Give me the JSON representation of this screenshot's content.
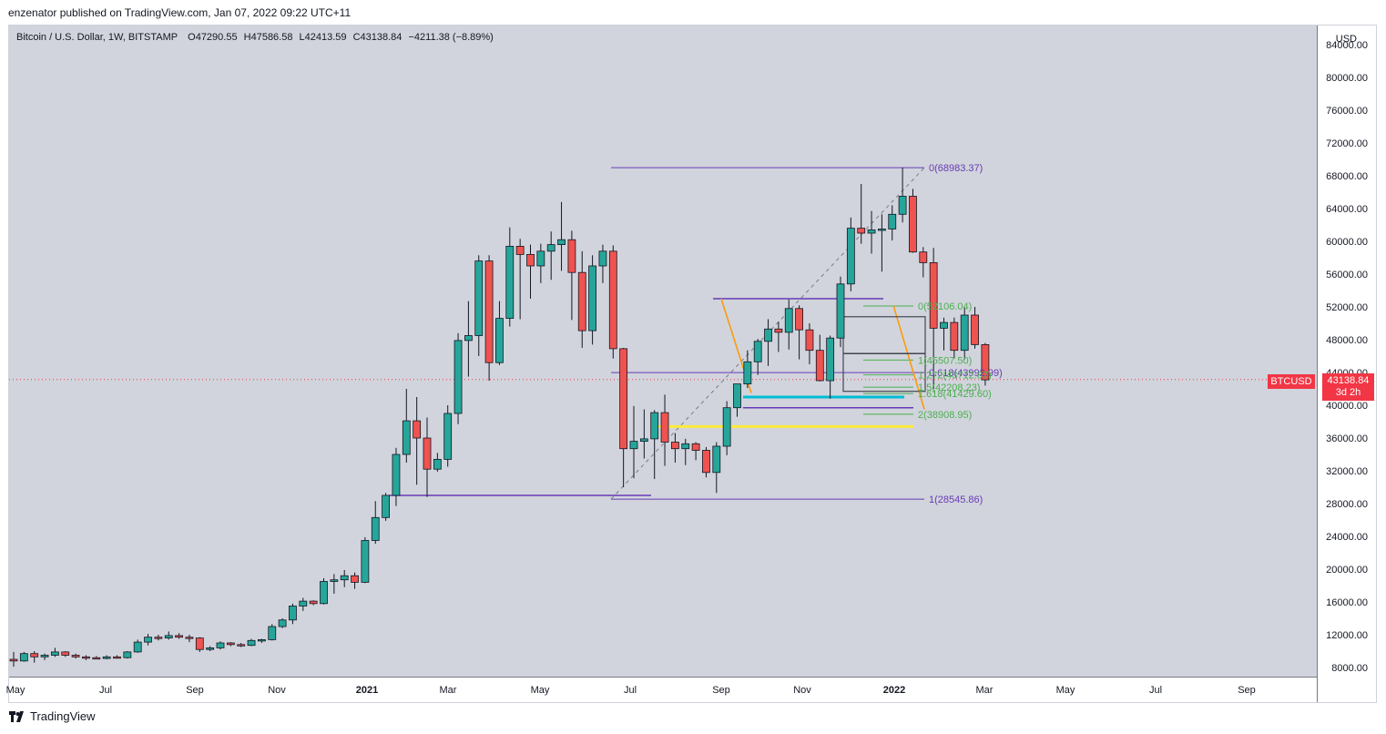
{
  "header": {
    "published_by": "enzenator published on TradingView.com, Jan 07, 2022 09:22 UTC+11"
  },
  "legend": {
    "symbol": "Bitcoin / U.S. Dollar, 1W, BITSTAMP",
    "open": "O47290.55",
    "high": "H47586.58",
    "low": "L42413.59",
    "close": "C43138.84",
    "change": "−4211.38 (−8.89%)"
  },
  "price_axis": {
    "currency": "USD",
    "ticks": [
      "8000.00",
      "12000.00",
      "16000.00",
      "20000.00",
      "24000.00",
      "28000.00",
      "32000.00",
      "36000.00",
      "40000.00",
      "44000.00",
      "48000.00",
      "52000.00",
      "56000.00",
      "60000.00",
      "64000.00",
      "68000.00",
      "72000.00",
      "76000.00",
      "80000.00",
      "84000.00"
    ],
    "current_price_label": "43138.84",
    "countdown": "3d 2h",
    "symbol_label": "BTCUSD"
  },
  "time_axis": {
    "labels": [
      "May",
      "Jul",
      "Sep",
      "Nov",
      "2021",
      "Mar",
      "May",
      "Jul",
      "Sep",
      "Nov",
      "2022",
      "Mar",
      "May",
      "Jul",
      "Sep"
    ]
  },
  "footer": {
    "brand": "TradingView"
  },
  "colors": {
    "up": "#26a69a",
    "down": "#ef5350",
    "fib_purple": "#673ab7",
    "fib_green": "#4caf50",
    "support_cyan": "#00bcd4",
    "support_yellow": "#ffeb3b",
    "trend_orange": "#ff9800",
    "last_price": "#f23645"
  },
  "chart_data": {
    "type": "candlestick",
    "title": "Bitcoin / U.S. Dollar, 1W, BITSTAMP",
    "ylabel": "USD",
    "ylim": [
      6000,
      86000
    ],
    "x_start_label": "May 2020",
    "last_price": 43138.84,
    "candles": [
      {
        "o": 9000,
        "h": 9900,
        "l": 8100,
        "c": 8800
      },
      {
        "o": 8800,
        "h": 9900,
        "l": 8700,
        "c": 9700
      },
      {
        "o": 9700,
        "h": 10000,
        "l": 8600,
        "c": 9300
      },
      {
        "o": 9300,
        "h": 9700,
        "l": 8900,
        "c": 9500
      },
      {
        "o": 9500,
        "h": 10400,
        "l": 9300,
        "c": 9900
      },
      {
        "o": 9900,
        "h": 10000,
        "l": 9300,
        "c": 9500
      },
      {
        "o": 9500,
        "h": 9700,
        "l": 9100,
        "c": 9300
      },
      {
        "o": 9300,
        "h": 9500,
        "l": 8900,
        "c": 9200
      },
      {
        "o": 9200,
        "h": 9400,
        "l": 9000,
        "c": 9100
      },
      {
        "o": 9100,
        "h": 9500,
        "l": 9000,
        "c": 9300
      },
      {
        "o": 9300,
        "h": 9500,
        "l": 9100,
        "c": 9200
      },
      {
        "o": 9200,
        "h": 10000,
        "l": 9100,
        "c": 9900
      },
      {
        "o": 9900,
        "h": 11400,
        "l": 9800,
        "c": 11100
      },
      {
        "o": 11100,
        "h": 12100,
        "l": 10700,
        "c": 11700
      },
      {
        "o": 11700,
        "h": 12000,
        "l": 11300,
        "c": 11600
      },
      {
        "o": 11600,
        "h": 12400,
        "l": 11400,
        "c": 11900
      },
      {
        "o": 11900,
        "h": 12200,
        "l": 11500,
        "c": 11700
      },
      {
        "o": 11700,
        "h": 12000,
        "l": 11100,
        "c": 11600
      },
      {
        "o": 11600,
        "h": 11700,
        "l": 9900,
        "c": 10200
      },
      {
        "o": 10200,
        "h": 10600,
        "l": 10000,
        "c": 10400
      },
      {
        "o": 10400,
        "h": 11200,
        "l": 10200,
        "c": 11000
      },
      {
        "o": 11000,
        "h": 11100,
        "l": 10600,
        "c": 10800
      },
      {
        "o": 10800,
        "h": 11000,
        "l": 10500,
        "c": 10700
      },
      {
        "o": 10700,
        "h": 11500,
        "l": 10600,
        "c": 11300
      },
      {
        "o": 11300,
        "h": 11500,
        "l": 11000,
        "c": 11400
      },
      {
        "o": 11400,
        "h": 13300,
        "l": 11300,
        "c": 13000
      },
      {
        "o": 13000,
        "h": 14000,
        "l": 12800,
        "c": 13800
      },
      {
        "o": 13800,
        "h": 15800,
        "l": 13300,
        "c": 15500
      },
      {
        "o": 15500,
        "h": 16500,
        "l": 14900,
        "c": 16100
      },
      {
        "o": 16100,
        "h": 16200,
        "l": 15600,
        "c": 15800
      },
      {
        "o": 15800,
        "h": 18900,
        "l": 15700,
        "c": 18500
      },
      {
        "o": 18500,
        "h": 19400,
        "l": 17000,
        "c": 18700
      },
      {
        "o": 18700,
        "h": 19900,
        "l": 17800,
        "c": 19200
      },
      {
        "o": 19200,
        "h": 19600,
        "l": 17600,
        "c": 18400
      },
      {
        "o": 18400,
        "h": 23900,
        "l": 18300,
        "c": 23500
      },
      {
        "o": 23500,
        "h": 28300,
        "l": 23100,
        "c": 26300
      },
      {
        "o": 26300,
        "h": 29300,
        "l": 25900,
        "c": 29000
      },
      {
        "o": 29000,
        "h": 34800,
        "l": 27700,
        "c": 34000
      },
      {
        "o": 34000,
        "h": 42000,
        "l": 33000,
        "c": 38100
      },
      {
        "o": 38100,
        "h": 41000,
        "l": 30300,
        "c": 36000
      },
      {
        "o": 36000,
        "h": 38500,
        "l": 28800,
        "c": 32200
      },
      {
        "o": 32200,
        "h": 34200,
        "l": 31900,
        "c": 33400
      },
      {
        "o": 33400,
        "h": 40000,
        "l": 32500,
        "c": 39000
      },
      {
        "o": 39000,
        "h": 48800,
        "l": 37700,
        "c": 47900
      },
      {
        "o": 47900,
        "h": 52700,
        "l": 43500,
        "c": 48500
      },
      {
        "o": 48500,
        "h": 58300,
        "l": 46000,
        "c": 57600
      },
      {
        "o": 57600,
        "h": 58300,
        "l": 43000,
        "c": 45200
      },
      {
        "o": 45200,
        "h": 52700,
        "l": 44900,
        "c": 50600
      },
      {
        "o": 50600,
        "h": 61700,
        "l": 49600,
        "c": 59400
      },
      {
        "o": 59400,
        "h": 60300,
        "l": 50500,
        "c": 58400
      },
      {
        "o": 58400,
        "h": 59600,
        "l": 53000,
        "c": 57000
      },
      {
        "o": 57000,
        "h": 59700,
        "l": 54900,
        "c": 58800
      },
      {
        "o": 58800,
        "h": 61200,
        "l": 55300,
        "c": 59600
      },
      {
        "o": 59600,
        "h": 64800,
        "l": 56400,
        "c": 60200
      },
      {
        "o": 60200,
        "h": 61300,
        "l": 50400,
        "c": 56200
      },
      {
        "o": 56200,
        "h": 58800,
        "l": 47000,
        "c": 49100
      },
      {
        "o": 49100,
        "h": 58300,
        "l": 47400,
        "c": 57000
      },
      {
        "o": 57000,
        "h": 59600,
        "l": 54900,
        "c": 58800
      },
      {
        "o": 58800,
        "h": 59500,
        "l": 45700,
        "c": 46900
      },
      {
        "o": 46900,
        "h": 47000,
        "l": 30000,
        "c": 34700
      },
      {
        "o": 34700,
        "h": 39900,
        "l": 31100,
        "c": 35600
      },
      {
        "o": 35600,
        "h": 39500,
        "l": 33500,
        "c": 35900
      },
      {
        "o": 35900,
        "h": 39400,
        "l": 31000,
        "c": 39100
      },
      {
        "o": 39100,
        "h": 41300,
        "l": 32600,
        "c": 35500
      },
      {
        "o": 35500,
        "h": 36600,
        "l": 33000,
        "c": 34700
      },
      {
        "o": 34700,
        "h": 35900,
        "l": 32700,
        "c": 35300
      },
      {
        "o": 35300,
        "h": 35500,
        "l": 33300,
        "c": 34500
      },
      {
        "o": 34500,
        "h": 34900,
        "l": 31200,
        "c": 31800
      },
      {
        "o": 31800,
        "h": 35500,
        "l": 29300,
        "c": 35000
      },
      {
        "o": 35000,
        "h": 40500,
        "l": 33900,
        "c": 39700
      },
      {
        "o": 39700,
        "h": 42200,
        "l": 38600,
        "c": 42600
      },
      {
        "o": 42600,
        "h": 46700,
        "l": 42100,
        "c": 45300
      },
      {
        "o": 45300,
        "h": 48100,
        "l": 43700,
        "c": 47800
      },
      {
        "o": 47800,
        "h": 50500,
        "l": 44800,
        "c": 49300
      },
      {
        "o": 49300,
        "h": 50200,
        "l": 46500,
        "c": 48900
      },
      {
        "o": 48900,
        "h": 52900,
        "l": 46800,
        "c": 51800
      },
      {
        "o": 51800,
        "h": 52200,
        "l": 45600,
        "c": 49200
      },
      {
        "o": 49200,
        "h": 50000,
        "l": 45000,
        "c": 46700
      },
      {
        "o": 46700,
        "h": 48600,
        "l": 42900,
        "c": 43000
      },
      {
        "o": 43000,
        "h": 48500,
        "l": 40800,
        "c": 48200
      },
      {
        "o": 48200,
        "h": 55700,
        "l": 47100,
        "c": 54800
      },
      {
        "o": 54800,
        "h": 62900,
        "l": 53900,
        "c": 61600
      },
      {
        "o": 61600,
        "h": 67000,
        "l": 59700,
        "c": 61000
      },
      {
        "o": 61000,
        "h": 63700,
        "l": 58500,
        "c": 61400
      },
      {
        "o": 61400,
        "h": 63300,
        "l": 56300,
        "c": 61500
      },
      {
        "o": 61500,
        "h": 64400,
        "l": 60100,
        "c": 63300
      },
      {
        "o": 63300,
        "h": 69000,
        "l": 62300,
        "c": 65500
      },
      {
        "o": 65500,
        "h": 66400,
        "l": 58600,
        "c": 58700
      },
      {
        "o": 58700,
        "h": 59300,
        "l": 55600,
        "c": 57400
      },
      {
        "o": 57400,
        "h": 59200,
        "l": 42000,
        "c": 49400
      },
      {
        "o": 49400,
        "h": 50700,
        "l": 46700,
        "c": 50100
      },
      {
        "o": 50100,
        "h": 50700,
        "l": 45700,
        "c": 46700
      },
      {
        "o": 46700,
        "h": 51900,
        "l": 45600,
        "c": 51000
      },
      {
        "o": 51000,
        "h": 52000,
        "l": 46900,
        "c": 47400
      },
      {
        "o": 47400,
        "h": 47600,
        "l": 42400,
        "c": 43100
      }
    ],
    "fib_levels": [
      {
        "label": "0(68983.37)",
        "value": 68983.37,
        "color": "purple"
      },
      {
        "label": "1(28545.86)",
        "value": 28545.86,
        "color": "purple"
      },
      {
        "label": "0(52106.04)",
        "value": 52106.04,
        "color": "green"
      },
      {
        "label": "1(45507.50)",
        "value": 45507.5,
        "color": "green"
      },
      {
        "label": "0.618(43992.99)",
        "value": 43992.99,
        "color": "purple"
      },
      {
        "label": "1.272(43712.87)",
        "value": 43712.87,
        "color": "green"
      },
      {
        "label": "1.5(42208.23)",
        "value": 42208.23,
        "color": "green"
      },
      {
        "label": "1.618(41429.60)",
        "value": 41429.6,
        "color": "green"
      },
      {
        "label": "2(38908.95)",
        "value": 38908.95,
        "color": "green"
      }
    ]
  }
}
